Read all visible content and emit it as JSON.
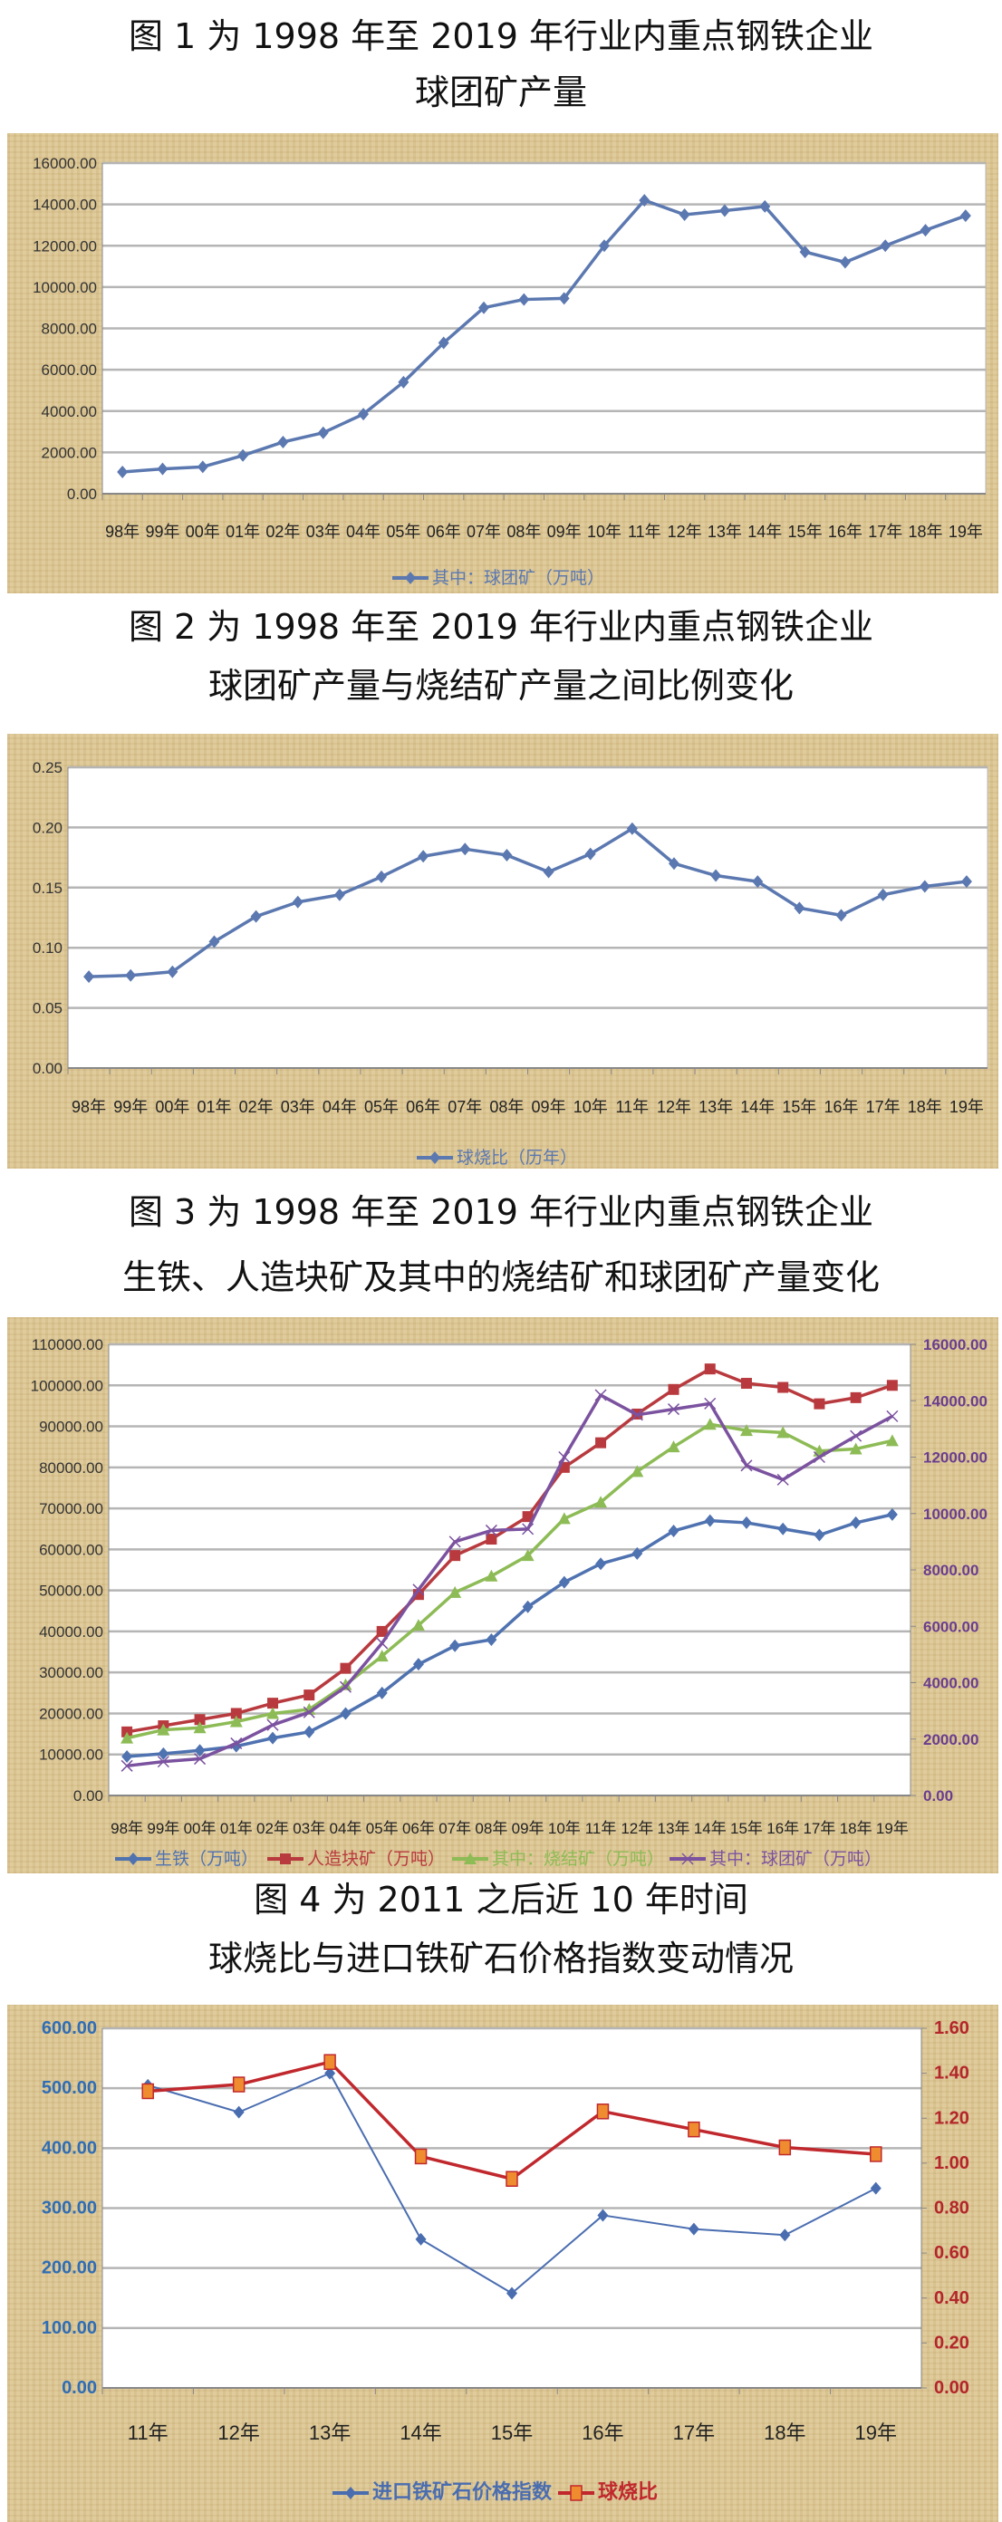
{
  "titles": [
    {
      "line1": "图 1 为 1998 年至 2019 年行业内重点钢铁企业",
      "line2": "球团矿产量"
    },
    {
      "line1": "图 2 为 1998 年至 2019 年行业内重点钢铁企业",
      "line2": "球团矿产量与烧结矿产量之间比例变化"
    },
    {
      "line1": "图 3 为 1998 年至 2019 年行业内重点钢铁企业",
      "line2": "生铁、人造块矿及其中的烧结矿和球团矿产量变化"
    },
    {
      "line1": "图 4 为 2011 之后近 10 年时间",
      "line2": "球烧比与进口铁矿石价格指数变动情况"
    }
  ],
  "chart_data": [
    {
      "type": "line",
      "categories": [
        "98年",
        "99年",
        "00年",
        "01年",
        "02年",
        "03年",
        "04年",
        "05年",
        "06年",
        "07年",
        "08年",
        "09年",
        "10年",
        "11年",
        "12年",
        "13年",
        "14年",
        "15年",
        "16年",
        "17年",
        "18年",
        "19年"
      ],
      "left_axis": {
        "min": 0,
        "max": 16000,
        "step": 2000,
        "decimals": 2,
        "color": "#333333"
      },
      "grid": true,
      "legend": "bottom",
      "series": [
        {
          "name": "其中：球团矿（万吨）",
          "axis": "left",
          "color": "#5b78b0",
          "marker": "diamond",
          "values": [
            1050,
            1200,
            1300,
            1850,
            2500,
            2950,
            3850,
            5400,
            7300,
            9000,
            9400,
            9450,
            12000,
            14200,
            13500,
            13700,
            13900,
            11700,
            11200,
            12000,
            12750,
            13450
          ]
        }
      ]
    },
    {
      "type": "line",
      "categories": [
        "98年",
        "99年",
        "00年",
        "01年",
        "02年",
        "03年",
        "04年",
        "05年",
        "06年",
        "07年",
        "08年",
        "09年",
        "10年",
        "11年",
        "12年",
        "13年",
        "14年",
        "15年",
        "16年",
        "17年",
        "18年",
        "19年"
      ],
      "left_axis": {
        "min": 0,
        "max": 0.25,
        "step": 0.05,
        "decimals": 2,
        "color": "#333333"
      },
      "grid": true,
      "legend": "bottom",
      "series": [
        {
          "name": "球烧比（历年）",
          "axis": "left",
          "color": "#5b78b0",
          "marker": "diamond",
          "values": [
            0.076,
            0.077,
            0.08,
            0.105,
            0.126,
            0.138,
            0.144,
            0.159,
            0.176,
            0.182,
            0.177,
            0.163,
            0.178,
            0.199,
            0.17,
            0.16,
            0.155,
            0.133,
            0.127,
            0.144,
            0.151,
            0.155
          ]
        }
      ]
    },
    {
      "type": "line",
      "categories": [
        "98年",
        "99年",
        "00年",
        "01年",
        "02年",
        "03年",
        "04年",
        "05年",
        "06年",
        "07年",
        "08年",
        "09年",
        "10年",
        "11年",
        "12年",
        "13年",
        "14年",
        "15年",
        "16年",
        "17年",
        "18年",
        "19年"
      ],
      "left_axis": {
        "min": 0,
        "max": 110000,
        "step": 10000,
        "decimals": 2,
        "color": "#333333"
      },
      "right_axis": {
        "min": 0,
        "max": 16000,
        "step": 2000,
        "decimals": 2,
        "color": "#6a3d8f"
      },
      "grid": true,
      "legend": "bottom",
      "series": [
        {
          "name": "生铁（万吨）",
          "axis": "left",
          "color": "#4f72b0",
          "marker": "diamond",
          "values": [
            9500,
            10200,
            11000,
            12000,
            14000,
            15500,
            20000,
            25000,
            32000,
            36500,
            38000,
            46000,
            52000,
            56500,
            59000,
            64500,
            67000,
            66500,
            65000,
            63500,
            66500,
            68500
          ]
        },
        {
          "name": "人造块矿（万吨）",
          "axis": "left",
          "color": "#b83a3e",
          "marker": "square",
          "values": [
            15500,
            17000,
            18500,
            20000,
            22500,
            24500,
            31000,
            40000,
            49000,
            58500,
            62500,
            68000,
            80000,
            86000,
            93000,
            99000,
            104000,
            100500,
            99500,
            95500,
            97000,
            100000
          ]
        },
        {
          "name": "其中：烧结矿（万吨）",
          "axis": "left",
          "color": "#8dbb55",
          "marker": "triangle",
          "values": [
            14000,
            16000,
            16500,
            18000,
            20000,
            21000,
            27000,
            34000,
            41500,
            49500,
            53500,
            58500,
            67500,
            71500,
            79000,
            85000,
            90500,
            89000,
            88500,
            84000,
            84500,
            86500
          ]
        },
        {
          "name": "其中：球团矿（万吨）",
          "axis": "right",
          "color": "#7b529f",
          "marker": "x",
          "values": [
            1050,
            1200,
            1300,
            1850,
            2500,
            2950,
            3850,
            5400,
            7300,
            9000,
            9400,
            9450,
            12000,
            14200,
            13500,
            13700,
            13900,
            11700,
            11200,
            12000,
            12750,
            13450
          ]
        }
      ]
    },
    {
      "type": "line",
      "categories": [
        "11年",
        "12年",
        "13年",
        "14年",
        "15年",
        "16年",
        "17年",
        "18年",
        "19年"
      ],
      "left_axis": {
        "min": 0,
        "max": 600,
        "step": 100,
        "decimals": 2,
        "color": "#2f6db5"
      },
      "right_axis": {
        "min": 0,
        "max": 1.6,
        "step": 0.2,
        "decimals": 2,
        "color": "#b3262b"
      },
      "grid": true,
      "legend": "bottom",
      "series": [
        {
          "name": "进口铁矿石价格指数",
          "axis": "left",
          "color": "#4a6db0",
          "marker": "diamond",
          "values": [
            505,
            460,
            525,
            248,
            158,
            288,
            265,
            255,
            333
          ]
        },
        {
          "name": "球烧比",
          "axis": "right",
          "color": "#c0282d",
          "marker": "square-orange",
          "marker_color": "#f08c30",
          "values": [
            1.32,
            1.35,
            1.45,
            1.03,
            0.93,
            1.23,
            1.15,
            1.07,
            1.04
          ]
        }
      ]
    }
  ]
}
